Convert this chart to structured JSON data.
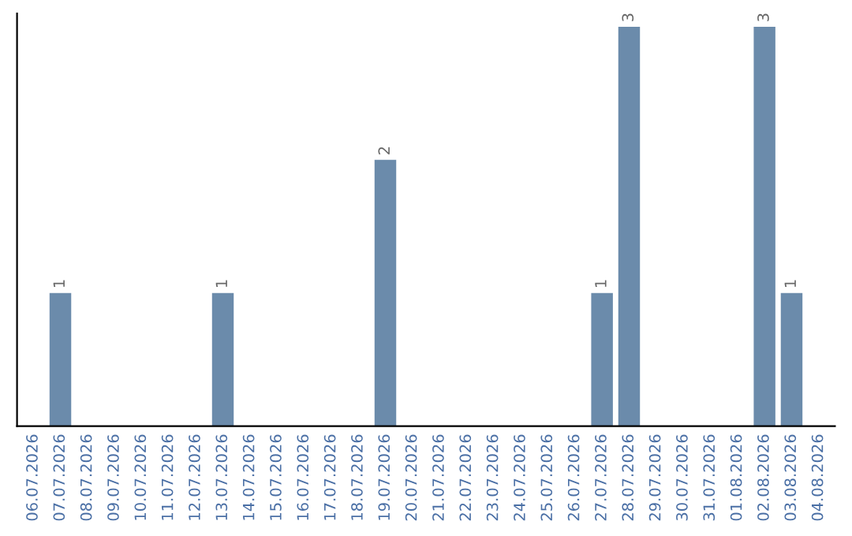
{
  "chart_data": {
    "type": "bar",
    "categories": [
      "06.07.2026",
      "07.07.2026",
      "08.07.2026",
      "09.07.2026",
      "10.07.2026",
      "11.07.2026",
      "12.07.2026",
      "13.07.2026",
      "14.07.2026",
      "15.07.2026",
      "16.07.2026",
      "17.07.2026",
      "18.07.2026",
      "19.07.2026",
      "20.07.2026",
      "21.07.2026",
      "22.07.2026",
      "23.07.2026",
      "24.07.2026",
      "25.07.2026",
      "26.07.2026",
      "27.07.2026",
      "28.07.2026",
      "29.07.2026",
      "30.07.2026",
      "31.07.2026",
      "01.08.2026",
      "02.08.2026",
      "03.08.2026",
      "04.08.2026"
    ],
    "values": [
      0,
      1,
      0,
      0,
      0,
      0,
      0,
      1,
      0,
      0,
      0,
      0,
      0,
      2,
      0,
      0,
      0,
      0,
      0,
      0,
      0,
      1,
      3,
      0,
      0,
      0,
      0,
      3,
      1,
      0
    ],
    "value_labels": [
      null,
      "1",
      null,
      null,
      null,
      null,
      null,
      "1",
      null,
      null,
      null,
      null,
      null,
      "2",
      null,
      null,
      null,
      null,
      null,
      null,
      null,
      "1",
      "3",
      null,
      null,
      null,
      null,
      "3",
      "1",
      null
    ],
    "color": "#6b8bab",
    "ylim": [
      0,
      3.1
    ],
    "tick_labels": "x",
    "grid": false,
    "legend": false
  }
}
